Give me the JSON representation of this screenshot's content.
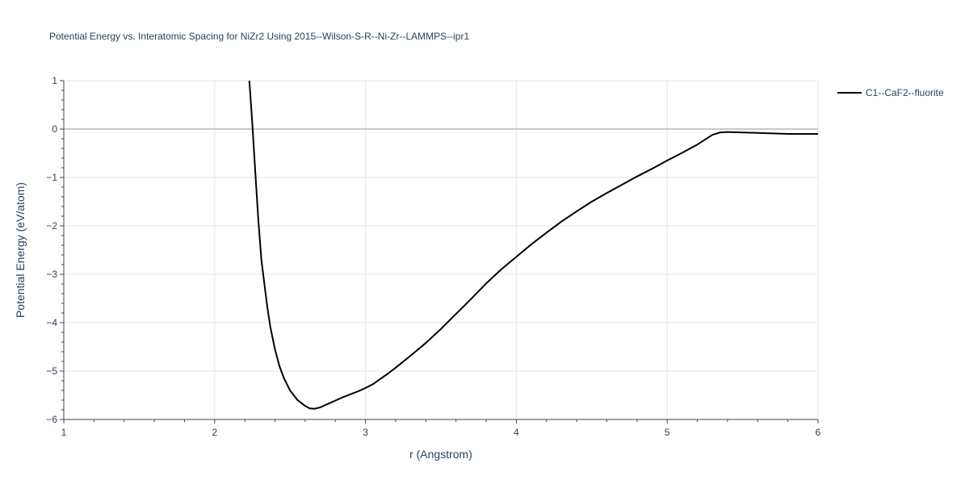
{
  "chart_data": {
    "type": "line",
    "title": "Potential Energy vs. Interatomic Spacing for NiZr2 Using 2015--Wilson-S-R--Ni-Zr--LAMMPS--ipr1",
    "xlabel": "r (Angstrom)",
    "ylabel": "Potential Energy (eV/atom)",
    "xlim": [
      1,
      6
    ],
    "ylim": [
      -6,
      1
    ],
    "xticks": [
      1,
      2,
      3,
      4,
      5,
      6
    ],
    "yticks": [
      -6,
      -5,
      -4,
      -3,
      -2,
      -1,
      0,
      1
    ],
    "ytick_labels": [
      "−6",
      "−5",
      "−4",
      "−3",
      "−2",
      "−1",
      "0",
      "1"
    ],
    "grid": true,
    "legend_position": "top-right",
    "series": [
      {
        "name": "C1--CaF2--fluorite",
        "color": "#000000",
        "x": [
          2.23,
          2.25,
          2.27,
          2.29,
          2.31,
          2.33,
          2.35,
          2.37,
          2.4,
          2.43,
          2.46,
          2.5,
          2.55,
          2.6,
          2.63,
          2.66,
          2.7,
          2.75,
          2.8,
          2.85,
          2.9,
          2.95,
          3.0,
          3.05,
          3.1,
          3.15,
          3.2,
          3.3,
          3.4,
          3.5,
          3.6,
          3.7,
          3.8,
          3.9,
          4.0,
          4.1,
          4.2,
          4.3,
          4.4,
          4.5,
          4.6,
          4.7,
          4.8,
          4.9,
          5.0,
          5.1,
          5.2,
          5.25,
          5.3,
          5.35,
          5.4,
          5.5,
          5.6,
          5.7,
          5.8,
          5.9,
          6.0
        ],
        "y": [
          1.0,
          0.1,
          -0.9,
          -1.9,
          -2.7,
          -3.2,
          -3.7,
          -4.1,
          -4.55,
          -4.9,
          -5.15,
          -5.4,
          -5.6,
          -5.72,
          -5.77,
          -5.78,
          -5.75,
          -5.68,
          -5.61,
          -5.54,
          -5.48,
          -5.42,
          -5.35,
          -5.27,
          -5.16,
          -5.05,
          -4.93,
          -4.68,
          -4.42,
          -4.13,
          -3.82,
          -3.51,
          -3.19,
          -2.9,
          -2.64,
          -2.38,
          -2.14,
          -1.91,
          -1.7,
          -1.5,
          -1.32,
          -1.15,
          -0.98,
          -0.82,
          -0.65,
          -0.49,
          -0.32,
          -0.22,
          -0.12,
          -0.07,
          -0.06,
          -0.07,
          -0.08,
          -0.09,
          -0.1,
          -0.1,
          -0.1
        ]
      }
    ]
  }
}
